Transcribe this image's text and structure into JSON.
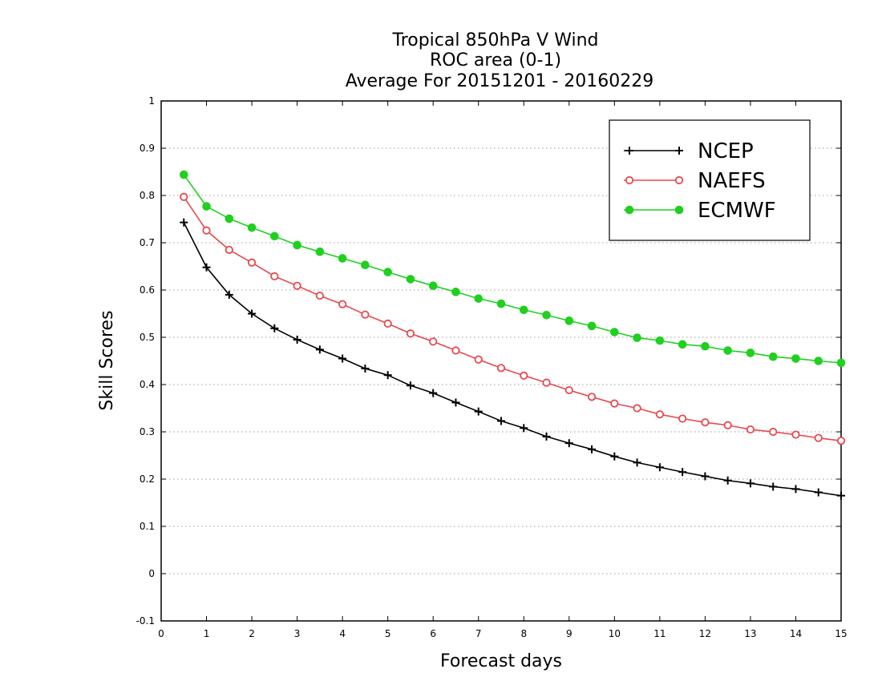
{
  "chart_data": {
    "type": "line",
    "title": [
      "Tropical 850hPa V Wind",
      "ROC area (0-1)",
      "Average For 20151201 - 20160229"
    ],
    "xlabel": "Forecast days",
    "ylabel": "Skill Scores",
    "xlim": [
      0,
      15
    ],
    "ylim": [
      -0.1,
      1
    ],
    "xticks": [
      "0",
      "1",
      "2",
      "3",
      "4",
      "5",
      "6",
      "7",
      "8",
      "9",
      "10",
      "11",
      "12",
      "13",
      "14",
      "15"
    ],
    "yticks": [
      "-0.1",
      "0",
      "0.1",
      "0.2",
      "0.3",
      "0.4",
      "0.5",
      "0.6",
      "0.7",
      "0.8",
      "0.9",
      "1"
    ],
    "grid": "dotted horizontal",
    "legend_position": "top-right",
    "x": [
      0.5,
      1,
      1.5,
      2,
      2.5,
      3,
      3.5,
      4,
      4.5,
      5,
      5.5,
      6,
      6.5,
      7,
      7.5,
      8,
      8.5,
      9,
      9.5,
      10,
      10.5,
      11,
      11.5,
      12,
      12.5,
      13,
      13.5,
      14,
      14.5,
      15
    ],
    "series": [
      {
        "name": "NCEP",
        "color": "#000000",
        "marker": "plus",
        "values": [
          0.743,
          0.648,
          0.59,
          0.55,
          0.519,
          0.495,
          0.474,
          0.455,
          0.434,
          0.42,
          0.398,
          0.382,
          0.362,
          0.343,
          0.323,
          0.308,
          0.29,
          0.276,
          0.263,
          0.248,
          0.235,
          0.225,
          0.215,
          0.206,
          0.197,
          0.191,
          0.184,
          0.179,
          0.172,
          0.165
        ]
      },
      {
        "name": "NAEFS",
        "color": "#e8484e",
        "marker": "open-circle",
        "values": [
          0.797,
          0.726,
          0.685,
          0.658,
          0.629,
          0.609,
          0.588,
          0.57,
          0.548,
          0.529,
          0.508,
          0.491,
          0.472,
          0.453,
          0.435,
          0.419,
          0.404,
          0.388,
          0.374,
          0.36,
          0.35,
          0.337,
          0.328,
          0.32,
          0.314,
          0.305,
          0.3,
          0.294,
          0.287,
          0.281
        ]
      },
      {
        "name": "ECMWF",
        "color": "#1fd01f",
        "marker": "filled-circle",
        "values": [
          0.844,
          0.777,
          0.751,
          0.732,
          0.714,
          0.695,
          0.681,
          0.667,
          0.653,
          0.638,
          0.623,
          0.609,
          0.596,
          0.582,
          0.571,
          0.558,
          0.547,
          0.535,
          0.524,
          0.511,
          0.499,
          0.493,
          0.485,
          0.481,
          0.472,
          0.467,
          0.459,
          0.455,
          0.45,
          0.446
        ]
      }
    ]
  }
}
